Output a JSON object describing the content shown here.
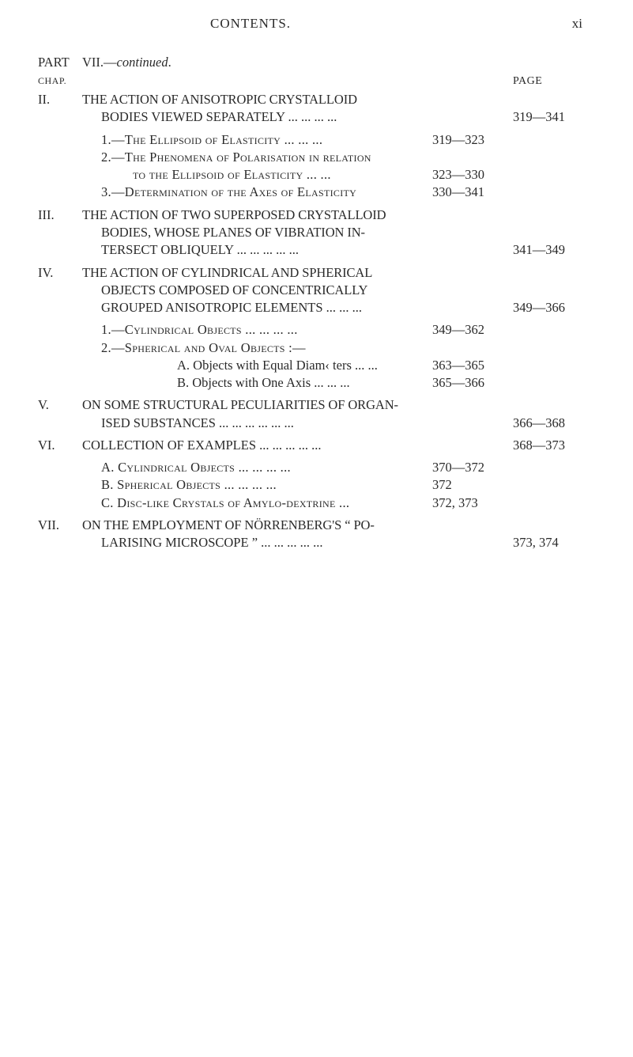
{
  "header": {
    "title": "CONTENTS.",
    "folio": "xi"
  },
  "page_label": "PAGE",
  "part": {
    "label_left": "PART",
    "label_right": "VII.—",
    "italic": "continued",
    "period": "."
  },
  "chap_label": "CHAP.",
  "entries": [
    {
      "roman": "II.",
      "lines": [
        "THE ACTION OF ANISOTROPIC CRYSTALLOID",
        "BODIES VIEWED SEPARATELY ...   ...   ...   ..."
      ],
      "page": "319—341",
      "subs": [
        {
          "text": "1.—The Ellipsoid of Elasticity ...   ...   ...",
          "page": "319—323"
        },
        {
          "text": "2.—The Phenomena of Polarisation in relation",
          "page": ""
        },
        {
          "text_indent": "to the Ellipsoid of Elasticity ...   ...",
          "page": "323—330"
        },
        {
          "text": "3.—Determination of the Axes of Elasticity",
          "page": "330—341"
        }
      ]
    },
    {
      "roman": "III.",
      "lines": [
        "THE ACTION OF TWO SUPERPOSED CRYSTALLOID",
        "BODIES, WHOSE PLANES OF VIBRATION IN-",
        "TERSECT OBLIQUELY        ...   ...   ...   ...   ..."
      ],
      "page": "341—349"
    },
    {
      "roman": "IV.",
      "lines": [
        "THE ACTION OF CYLINDRICAL AND SPHERICAL",
        "OBJECTS COMPOSED OF CONCENTRICALLY",
        "GROUPED ANISOTROPIC ELEMENTS ...   ...   ..."
      ],
      "page": "349—366",
      "subs": [
        {
          "text": "1.—Cylindrical Objects   ...   ...   ...   ...",
          "page": "349—362"
        },
        {
          "text": "2.—Spherical and Oval Objects :—",
          "page": ""
        },
        {
          "text_indent2": "A. Objects with Equal Diam‹ ters   ...   ...",
          "page": "363—365"
        },
        {
          "text_indent2": "B. Objects with One Axis      ...   ...   ...",
          "page": "365—366"
        }
      ]
    },
    {
      "roman": "V.",
      "lines": [
        "ON SOME STRUCTURAL PECULIARITIES OF ORGAN-",
        "ISED SUBSTANCES ...   ...   ...   ...   ...   ..."
      ],
      "page": "366—368"
    },
    {
      "roman": "VI.",
      "lines": [
        "COLLECTION OF EXAMPLES ...   ...   ...   ...   ..."
      ],
      "page": "368—373",
      "subs": [
        {
          "text_plain": "A. Cylindrical Objects     ...   ...   ...   ...",
          "page": "370—372"
        },
        {
          "text_plain": "B. Spherical Objects        ...   ...   ...   ...",
          "page": "372"
        },
        {
          "text_plain": "C. Disc-like Crystals of Amylo-dextrine   ...",
          "page": "372, 373"
        }
      ]
    },
    {
      "roman": "VII.",
      "lines": [
        "ON THE EMPLOYMENT OF NÖRRENBERG'S “ PO-",
        "LARISING MICROSCOPE ”  ...   ...   ...   ...   ..."
      ],
      "page": "373, 374"
    }
  ]
}
